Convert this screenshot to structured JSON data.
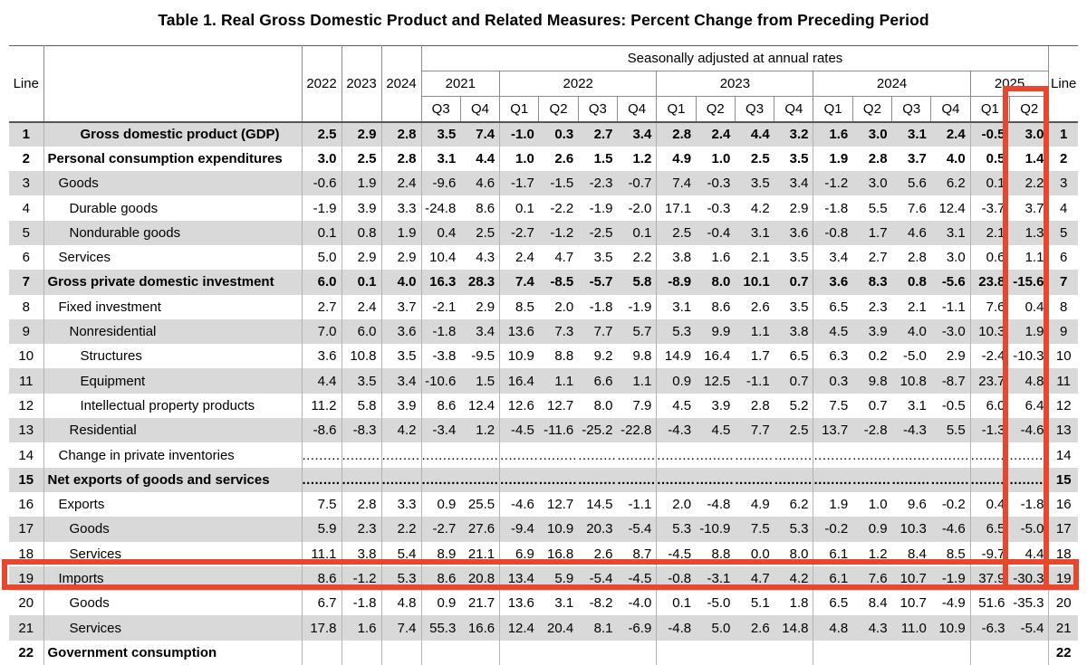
{
  "title": "Table 1. Real Gross Domestic Product and Related Measures: Percent Change from Preceding Period",
  "colors": {
    "highlight_red": "#e6472d",
    "band_gray": "#d9d9d9"
  },
  "table": {
    "line_header": "Line",
    "sa_header": "Seasonally adjusted at annual rates",
    "annual_headers": [
      "2022",
      "2023",
      "2024"
    ],
    "year_groups": [
      {
        "label": "2021",
        "span": 2
      },
      {
        "label": "2022",
        "span": 4
      },
      {
        "label": "2023",
        "span": 4
      },
      {
        "label": "2024",
        "span": 4
      },
      {
        "label": "2025",
        "span": 2
      }
    ],
    "quarter_labels": [
      "Q3",
      "Q4",
      "Q1",
      "Q2",
      "Q3",
      "Q4",
      "Q1",
      "Q2",
      "Q3",
      "Q4",
      "Q1",
      "Q2",
      "Q3",
      "Q4",
      "Q1",
      "Q2"
    ],
    "dots": ".........",
    "highlights": {
      "column": "2025 Q2",
      "row_line": 19
    },
    "rows": [
      {
        "line": 1,
        "label": "Gross domestic product (GDP)",
        "indent": 3,
        "bold": true,
        "dotted": false,
        "annual": [
          "2.5",
          "2.9",
          "2.8"
        ],
        "quarterly": [
          "3.5",
          "7.4",
          "-1.0",
          "0.3",
          "2.7",
          "3.4",
          "2.8",
          "2.4",
          "4.4",
          "3.2",
          "1.6",
          "3.0",
          "3.1",
          "2.4",
          "-0.5",
          "3.0"
        ]
      },
      {
        "line": 2,
        "label": "Personal consumption expenditures",
        "indent": 0,
        "bold": true,
        "dotted": false,
        "annual": [
          "3.0",
          "2.5",
          "2.8"
        ],
        "quarterly": [
          "3.1",
          "4.4",
          "1.0",
          "2.6",
          "1.5",
          "1.2",
          "4.9",
          "1.0",
          "2.5",
          "3.5",
          "1.9",
          "2.8",
          "3.7",
          "4.0",
          "0.5",
          "1.4"
        ]
      },
      {
        "line": 3,
        "label": "Goods",
        "indent": 1,
        "bold": false,
        "dotted": false,
        "annual": [
          "-0.6",
          "1.9",
          "2.4"
        ],
        "quarterly": [
          "-9.6",
          "4.6",
          "-1.7",
          "-1.5",
          "-2.3",
          "-0.7",
          "7.4",
          "-0.3",
          "3.5",
          "3.4",
          "-1.2",
          "3.0",
          "5.6",
          "6.2",
          "0.1",
          "2.2"
        ]
      },
      {
        "line": 4,
        "label": "Durable goods",
        "indent": 2,
        "bold": false,
        "dotted": false,
        "annual": [
          "-1.9",
          "3.9",
          "3.3"
        ],
        "quarterly": [
          "-24.8",
          "8.6",
          "0.1",
          "-2.2",
          "-1.9",
          "-2.0",
          "17.1",
          "-0.3",
          "4.2",
          "2.9",
          "-1.8",
          "5.5",
          "7.6",
          "12.4",
          "-3.7",
          "3.7"
        ]
      },
      {
        "line": 5,
        "label": "Nondurable goods",
        "indent": 2,
        "bold": false,
        "dotted": false,
        "annual": [
          "0.1",
          "0.8",
          "1.9"
        ],
        "quarterly": [
          "0.4",
          "2.5",
          "-2.7",
          "-1.2",
          "-2.5",
          "0.1",
          "2.5",
          "-0.4",
          "3.1",
          "3.6",
          "-0.8",
          "1.7",
          "4.6",
          "3.1",
          "2.1",
          "1.3"
        ]
      },
      {
        "line": 6,
        "label": "Services",
        "indent": 1,
        "bold": false,
        "dotted": false,
        "annual": [
          "5.0",
          "2.9",
          "2.9"
        ],
        "quarterly": [
          "10.4",
          "4.3",
          "2.4",
          "4.7",
          "3.5",
          "2.2",
          "3.8",
          "1.6",
          "2.1",
          "3.5",
          "3.4",
          "2.7",
          "2.8",
          "3.0",
          "0.6",
          "1.1"
        ]
      },
      {
        "line": 7,
        "label": "Gross private domestic investment",
        "indent": 0,
        "bold": true,
        "dotted": false,
        "annual": [
          "6.0",
          "0.1",
          "4.0"
        ],
        "quarterly": [
          "16.3",
          "28.3",
          "7.4",
          "-8.5",
          "-5.7",
          "5.8",
          "-8.9",
          "8.0",
          "10.1",
          "0.7",
          "3.6",
          "8.3",
          "0.8",
          "-5.6",
          "23.8",
          "-15.6"
        ]
      },
      {
        "line": 8,
        "label": "Fixed investment",
        "indent": 1,
        "bold": false,
        "dotted": false,
        "annual": [
          "2.7",
          "2.4",
          "3.7"
        ],
        "quarterly": [
          "-2.1",
          "2.9",
          "8.5",
          "2.0",
          "-1.8",
          "-1.9",
          "3.1",
          "8.6",
          "2.6",
          "3.5",
          "6.5",
          "2.3",
          "2.1",
          "-1.1",
          "7.6",
          "0.4"
        ]
      },
      {
        "line": 9,
        "label": "Nonresidential",
        "indent": 2,
        "bold": false,
        "dotted": false,
        "annual": [
          "7.0",
          "6.0",
          "3.6"
        ],
        "quarterly": [
          "-1.8",
          "3.4",
          "13.6",
          "7.3",
          "7.7",
          "5.7",
          "5.3",
          "9.9",
          "1.1",
          "3.8",
          "4.5",
          "3.9",
          "4.0",
          "-3.0",
          "10.3",
          "1.9"
        ]
      },
      {
        "line": 10,
        "label": "Structures",
        "indent": 3,
        "bold": false,
        "dotted": false,
        "annual": [
          "3.6",
          "10.8",
          "3.5"
        ],
        "quarterly": [
          "-3.8",
          "-9.5",
          "10.9",
          "8.8",
          "9.2",
          "9.8",
          "14.9",
          "16.4",
          "1.7",
          "6.5",
          "6.3",
          "0.2",
          "-5.0",
          "2.9",
          "-2.4",
          "-10.3"
        ]
      },
      {
        "line": 11,
        "label": "Equipment",
        "indent": 3,
        "bold": false,
        "dotted": false,
        "annual": [
          "4.4",
          "3.5",
          "3.4"
        ],
        "quarterly": [
          "-10.6",
          "1.5",
          "16.4",
          "1.1",
          "6.6",
          "1.1",
          "0.9",
          "12.5",
          "-1.1",
          "0.7",
          "0.3",
          "9.8",
          "10.8",
          "-8.7",
          "23.7",
          "4.8"
        ]
      },
      {
        "line": 12,
        "label": "Intellectual property products",
        "indent": 3,
        "bold": false,
        "dotted": false,
        "annual": [
          "11.2",
          "5.8",
          "3.9"
        ],
        "quarterly": [
          "8.6",
          "12.4",
          "12.6",
          "12.7",
          "8.0",
          "7.9",
          "4.5",
          "3.9",
          "2.8",
          "5.2",
          "7.5",
          "0.7",
          "3.1",
          "-0.5",
          "6.0",
          "6.4"
        ]
      },
      {
        "line": 13,
        "label": "Residential",
        "indent": 2,
        "bold": false,
        "dotted": false,
        "annual": [
          "-8.6",
          "-8.3",
          "4.2"
        ],
        "quarterly": [
          "-3.4",
          "1.2",
          "-4.5",
          "-11.6",
          "-25.2",
          "-22.8",
          "-4.3",
          "4.5",
          "7.7",
          "2.5",
          "13.7",
          "-2.8",
          "-4.3",
          "5.5",
          "-1.3",
          "-4.6"
        ]
      },
      {
        "line": 14,
        "label": "Change in private inventories",
        "indent": 1,
        "bold": false,
        "dotted": true,
        "annual": [],
        "quarterly": []
      },
      {
        "line": 15,
        "label": "Net exports of goods and services",
        "indent": 0,
        "bold": true,
        "dotted": true,
        "annual": [],
        "quarterly": []
      },
      {
        "line": 16,
        "label": "Exports",
        "indent": 1,
        "bold": false,
        "dotted": false,
        "annual": [
          "7.5",
          "2.8",
          "3.3"
        ],
        "quarterly": [
          "0.9",
          "25.5",
          "-4.6",
          "12.7",
          "14.5",
          "-1.1",
          "2.0",
          "-4.8",
          "4.9",
          "6.2",
          "1.9",
          "1.0",
          "9.6",
          "-0.2",
          "0.4",
          "-1.8"
        ]
      },
      {
        "line": 17,
        "label": "Goods",
        "indent": 2,
        "bold": false,
        "dotted": false,
        "annual": [
          "5.9",
          "2.3",
          "2.2"
        ],
        "quarterly": [
          "-2.7",
          "27.6",
          "-9.4",
          "10.9",
          "20.3",
          "-5.4",
          "5.3",
          "-10.9",
          "7.5",
          "5.3",
          "-0.2",
          "0.9",
          "10.3",
          "-4.6",
          "6.5",
          "-5.0"
        ]
      },
      {
        "line": 18,
        "label": "Services",
        "indent": 2,
        "bold": false,
        "dotted": false,
        "annual": [
          "11.1",
          "3.8",
          "5.4"
        ],
        "quarterly": [
          "8.9",
          "21.1",
          "6.9",
          "16.8",
          "2.6",
          "8.7",
          "-4.5",
          "8.8",
          "0.0",
          "8.0",
          "6.1",
          "1.2",
          "8.4",
          "8.5",
          "-9.7",
          "4.4"
        ]
      },
      {
        "line": 19,
        "label": "Imports",
        "indent": 1,
        "bold": false,
        "dotted": false,
        "annual": [
          "8.6",
          "-1.2",
          "5.3"
        ],
        "quarterly": [
          "8.6",
          "20.8",
          "13.4",
          "5.9",
          "-5.4",
          "-4.5",
          "-0.8",
          "-3.1",
          "4.7",
          "4.2",
          "6.1",
          "7.6",
          "10.7",
          "-1.9",
          "37.9",
          "-30.3"
        ]
      },
      {
        "line": 20,
        "label": "Goods",
        "indent": 2,
        "bold": false,
        "dotted": false,
        "annual": [
          "6.7",
          "-1.8",
          "4.8"
        ],
        "quarterly": [
          "0.9",
          "21.7",
          "13.6",
          "3.1",
          "-8.2",
          "-4.0",
          "0.1",
          "-5.0",
          "5.1",
          "1.8",
          "6.5",
          "8.4",
          "10.7",
          "-4.9",
          "51.6",
          "-35.3"
        ]
      },
      {
        "line": 21,
        "label": "Services",
        "indent": 2,
        "bold": false,
        "dotted": false,
        "annual": [
          "17.8",
          "1.6",
          "7.4"
        ],
        "quarterly": [
          "55.3",
          "16.6",
          "12.4",
          "20.4",
          "8.1",
          "-6.9",
          "-4.8",
          "5.0",
          "2.6",
          "14.8",
          "4.8",
          "4.3",
          "11.0",
          "10.9",
          "-6.3",
          "-5.4"
        ]
      },
      {
        "line": 22,
        "label": "Government consumption",
        "indent": 0,
        "bold": true,
        "dotted": false,
        "annual": [],
        "quarterly": []
      }
    ]
  }
}
